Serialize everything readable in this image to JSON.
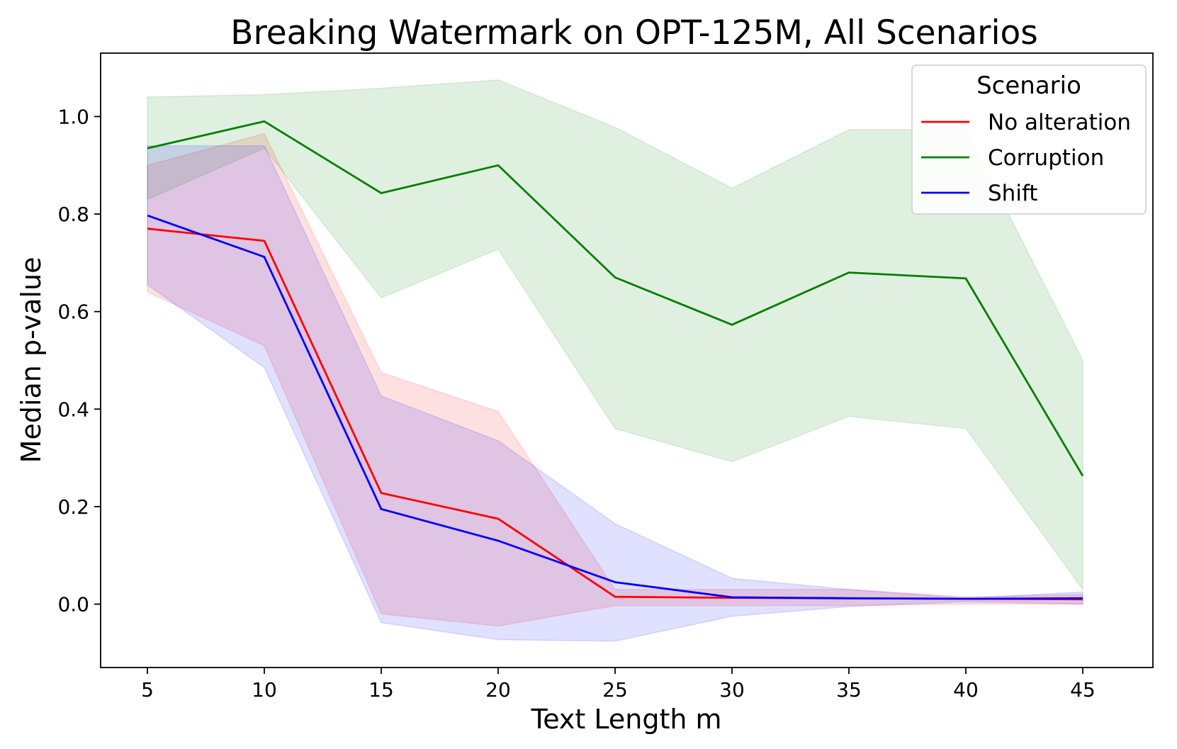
{
  "chart_data": {
    "type": "line",
    "title": "Breaking Watermark on OPT-125M, All Scenarios",
    "xlabel": "Text Length m",
    "ylabel": "Median p-value",
    "xlim": [
      3,
      48
    ],
    "ylim": [
      -0.13,
      1.13
    ],
    "x": [
      5,
      10,
      15,
      20,
      25,
      30,
      35,
      40,
      45
    ],
    "x_ticks": [
      5,
      10,
      15,
      20,
      25,
      30,
      35,
      40,
      45
    ],
    "y_ticks": [
      0.0,
      0.2,
      0.4,
      0.6,
      0.8,
      1.0
    ],
    "grid": false,
    "legend": {
      "title": "Scenario",
      "placement": "top-right"
    },
    "series": [
      {
        "name": "No alteration",
        "color": "#ff0000",
        "values": [
          0.77,
          0.745,
          0.228,
          0.175,
          0.015,
          0.013,
          0.012,
          0.011,
          0.01
        ],
        "lower": [
          0.64,
          0.53,
          -0.02,
          -0.045,
          -0.003,
          -0.003,
          -0.003,
          0.0,
          0.0
        ],
        "upper": [
          0.9,
          0.965,
          0.475,
          0.395,
          0.03,
          0.03,
          0.03,
          0.015,
          0.02
        ]
      },
      {
        "name": "Corruption",
        "color": "#008000",
        "values": [
          0.935,
          0.99,
          0.843,
          0.9,
          0.67,
          0.573,
          0.68,
          0.668,
          0.263
        ],
        "lower": [
          0.83,
          0.935,
          0.628,
          0.728,
          0.36,
          0.292,
          0.385,
          0.36,
          0.03
        ],
        "upper": [
          1.04,
          1.045,
          1.058,
          1.075,
          0.978,
          0.853,
          0.973,
          0.973,
          0.5
        ]
      },
      {
        "name": "Shift",
        "color": "#0000ff",
        "values": [
          0.797,
          0.712,
          0.195,
          0.13,
          0.045,
          0.014,
          0.012,
          0.011,
          0.012
        ],
        "lower": [
          0.655,
          0.485,
          -0.038,
          -0.073,
          -0.076,
          -0.025,
          -0.005,
          0.005,
          0.0
        ],
        "upper": [
          0.94,
          0.94,
          0.427,
          0.335,
          0.165,
          0.053,
          0.03,
          0.012,
          0.025
        ]
      }
    ]
  }
}
